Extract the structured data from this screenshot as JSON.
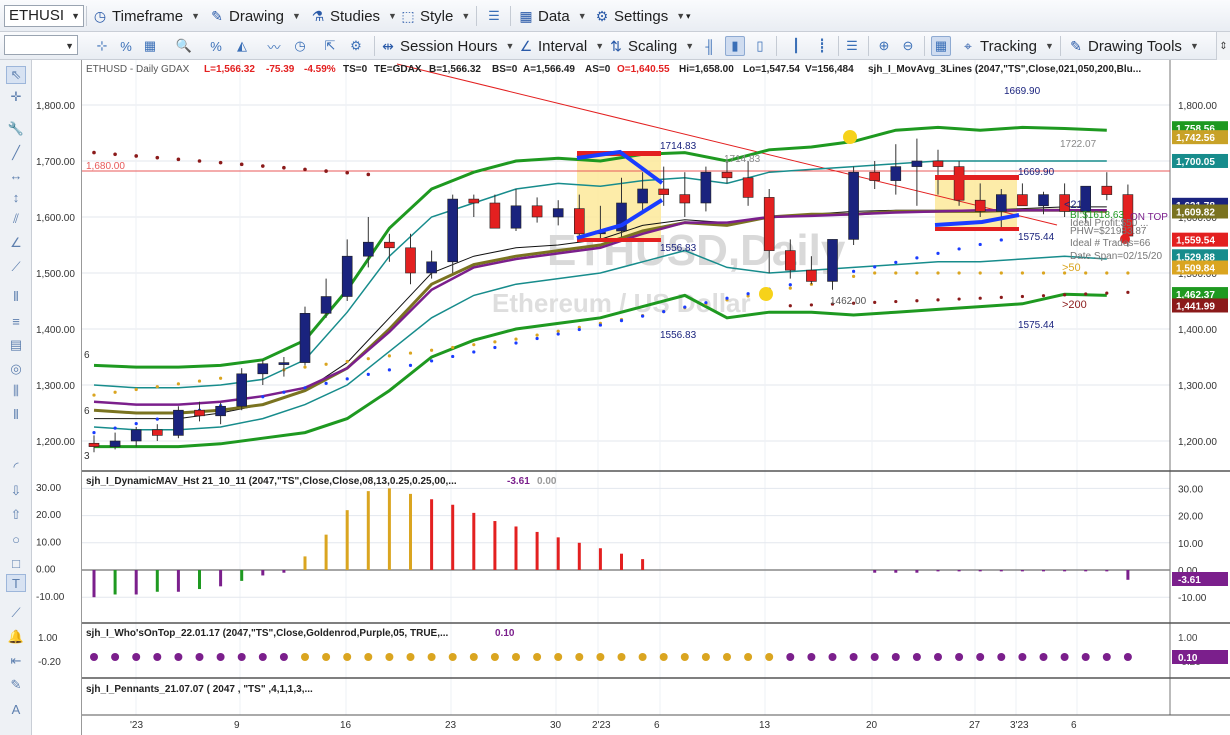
{
  "toolbar": {
    "symbol": "ETHUSI",
    "timeframe": "Timeframe",
    "drawing": "Drawing",
    "studies": "Studies",
    "style": "Style",
    "data": "Data",
    "settings": "Settings",
    "session_hours": "Session Hours",
    "interval": "Interval",
    "scaling": "Scaling",
    "tracking": "Tracking",
    "drawing_tools": "Drawing Tools"
  },
  "colors": {
    "up": "#1a237e",
    "down": "#e32020",
    "band_green": "#1e9920",
    "band_teal": "#178c8c",
    "olive": "#7a7320",
    "purple": "#7b1f8c",
    "goldenrod": "#daa520",
    "highlight": "#fde99a"
  },
  "header": {
    "symbol_line": "ETHUSD - Daily  GDAX",
    "last": "L=1,566.32",
    "change": "-75.39",
    "pct": "-4.59%",
    "ts": "TS=0",
    "te": "TE=GDAX",
    "bid": "B=1,566.32",
    "bs": "BS=0",
    "ask": "A=1,566.49",
    "as": "AS=0",
    "open": "O=1,640.55",
    "high": "Hi=1,658.00",
    "low": "Lo=1,547.54",
    "vol": "V=156,484",
    "study": "sjh_I_MovAvg_3Lines (2047,\"TS\",Close,021,050,200,Blu..."
  },
  "watermark": {
    "title": "ETHUSD,Daily",
    "subtitle": "Ethereum / US Dollar"
  },
  "annotations": {
    "a1714": "1714.83",
    "a1714b": "1714.83",
    "a1556": "1556.83",
    "a1556b": "1556.83",
    "a1669": "1669.90",
    "a1669top": "1669.90",
    "a1722": "1722.07",
    "a1575": "1575.44",
    "a1575b": "1575.44",
    "a1462": "1462.00",
    "hline": "1,680.00",
    "ma21": "<21",
    "ma50": ">50",
    "ma200": ">200",
    "info1": "BI:$1618.63",
    "info1b": "ON TOP",
    "info2": "Ideal Profit:$50 ...",
    "info3": "PHW=$21983.87",
    "info4": "Ideal # Trades=66",
    "info5": "Date Span=02/15/20",
    "left1": "6",
    "left2": "6",
    "left3": "3"
  },
  "price_axis": {
    "ticks": [
      "1,800.00",
      "1,700.00",
      "1,600.00",
      "1,500.00",
      "1,400.00",
      "1,300.00",
      "1,200.00"
    ],
    "tags": [
      {
        "label": "1,758.56",
        "color": "#1e9920"
      },
      {
        "label": "1,742.56",
        "color": "#c8a227"
      },
      {
        "label": "1,700.05",
        "color": "#178c8c"
      },
      {
        "label": "1,621.78",
        "color": "#1a237e"
      },
      {
        "label": "1,609.82",
        "color": "#7a7320"
      },
      {
        "label": "1,559.54",
        "color": "#e32020"
      },
      {
        "label": "1,529.88",
        "color": "#178c8c"
      },
      {
        "label": "1,509.84",
        "color": "#daa520"
      },
      {
        "label": "1,462.37",
        "color": "#1e9920"
      },
      {
        "label": "1,441.99",
        "color": "#8b1a1a"
      }
    ]
  },
  "panel2": {
    "label": "sjh_I_DynamicMAV_Hst 21_10_11 (2047,\"TS\",Close,Close,08,13,0.25,0.25,00,...",
    "v1": "-3.61",
    "v2": "0.00",
    "ticks": [
      "30.00",
      "20.00",
      "10.00",
      "0.00",
      "-10.00"
    ],
    "tag": "-3.61"
  },
  "panel3": {
    "label": "sjh_I_Who'sOnTop_22.01.17 (2047,\"TS\",Close,Goldenrod,Purple,05, TRUE,...",
    "v1": "0.10",
    "ticks": [
      "1.00",
      "-0.20"
    ],
    "tag": "0.10"
  },
  "panel4": {
    "label": "sjh_I_Pennants_21.07.07 ( 2047 , \"TS\" ,4,1,1,3,..."
  },
  "x_axis": {
    "labels": [
      "'23",
      "9",
      "16",
      "23",
      "30",
      "2'23",
      "6",
      "13",
      "20",
      "27",
      "3'23",
      "6"
    ]
  },
  "chart_data": {
    "type": "candlestick",
    "title": "ETHUSD - Daily  GDAX",
    "ylim": [
      1150,
      1850
    ],
    "candles": [
      [
        1196,
        1210,
        1180,
        1190
      ],
      [
        1190,
        1215,
        1185,
        1200
      ],
      [
        1200,
        1225,
        1190,
        1220
      ],
      [
        1220,
        1230,
        1200,
        1210
      ],
      [
        1210,
        1262,
        1205,
        1255
      ],
      [
        1255,
        1270,
        1235,
        1245
      ],
      [
        1245,
        1268,
        1230,
        1262
      ],
      [
        1262,
        1330,
        1255,
        1320
      ],
      [
        1320,
        1345,
        1300,
        1338
      ],
      [
        1338,
        1350,
        1315,
        1340
      ],
      [
        1340,
        1440,
        1335,
        1428
      ],
      [
        1428,
        1490,
        1420,
        1458
      ],
      [
        1458,
        1560,
        1450,
        1530
      ],
      [
        1530,
        1600,
        1510,
        1555
      ],
      [
        1555,
        1570,
        1520,
        1545
      ],
      [
        1545,
        1570,
        1480,
        1500
      ],
      [
        1500,
        1540,
        1490,
        1520
      ],
      [
        1520,
        1640,
        1500,
        1632
      ],
      [
        1632,
        1640,
        1600,
        1625
      ],
      [
        1625,
        1640,
        1580,
        1580
      ],
      [
        1580,
        1650,
        1575,
        1620
      ],
      [
        1620,
        1635,
        1590,
        1600
      ],
      [
        1600,
        1630,
        1585,
        1615
      ],
      [
        1615,
        1640,
        1560,
        1570
      ],
      [
        1570,
        1620,
        1560,
        1575
      ],
      [
        1575,
        1670,
        1565,
        1625
      ],
      [
        1625,
        1680,
        1610,
        1650
      ],
      [
        1650,
        1690,
        1620,
        1640
      ],
      [
        1640,
        1680,
        1600,
        1625
      ],
      [
        1625,
        1690,
        1610,
        1680
      ],
      [
        1680,
        1700,
        1660,
        1670
      ],
      [
        1670,
        1700,
        1620,
        1635
      ],
      [
        1635,
        1650,
        1500,
        1540
      ],
      [
        1540,
        1560,
        1490,
        1505
      ],
      [
        1505,
        1530,
        1480,
        1485
      ],
      [
        1485,
        1560,
        1470,
        1560
      ],
      [
        1560,
        1690,
        1550,
        1680
      ],
      [
        1680,
        1700,
        1650,
        1665
      ],
      [
        1665,
        1730,
        1640,
        1690
      ],
      [
        1690,
        1740,
        1620,
        1700
      ],
      [
        1700,
        1720,
        1640,
        1690
      ],
      [
        1690,
        1700,
        1620,
        1630
      ],
      [
        1630,
        1660,
        1600,
        1610
      ],
      [
        1610,
        1650,
        1580,
        1640
      ],
      [
        1640,
        1660,
        1620,
        1620
      ],
      [
        1620,
        1645,
        1605,
        1640
      ],
      [
        1640,
        1660,
        1600,
        1610
      ],
      [
        1610,
        1650,
        1590,
        1655
      ],
      [
        1655,
        1680,
        1630,
        1640
      ],
      [
        1640,
        1658,
        1547,
        1566
      ]
    ],
    "histogram": [
      -10,
      -9,
      -9,
      -8,
      -8,
      -7,
      -6,
      -4,
      -2,
      -1,
      5,
      13,
      22,
      29,
      30,
      28,
      26,
      24,
      21,
      18,
      16,
      14,
      12,
      10,
      8,
      6,
      4,
      -1,
      -1,
      -1,
      -0.5,
      -0.5,
      -0.5,
      -0.5,
      -0.5,
      -0.5,
      -0.5,
      -0.5,
      -0.5,
      -3.6
    ]
  }
}
